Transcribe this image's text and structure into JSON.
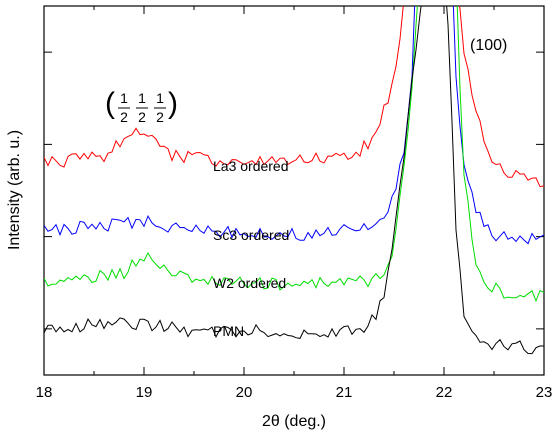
{
  "chart_data": {
    "type": "line",
    "xlabel": "2θ (deg.)",
    "ylabel": "Intensity (arb. u.)",
    "xlim": [
      18,
      23
    ],
    "x_ticks": [
      "18",
      "19",
      "20",
      "21",
      "22",
      "23"
    ],
    "y_ticks_labeled": false,
    "grid": false,
    "legend": "none",
    "annotations": {
      "peak_100": "(100)",
      "superlattice_open": "(",
      "superlattice_close": ")",
      "superlattice_numerators": [
        "1",
        "1",
        "1"
      ],
      "superlattice_denominators": [
        "2",
        "2",
        "2"
      ]
    },
    "series": [
      {
        "name": "La3 ordered",
        "color": "#ff0000",
        "x": [
          18.0,
          18.2,
          18.4,
          18.6,
          18.8,
          18.9,
          19.0,
          19.1,
          19.3,
          19.6,
          20.0,
          20.4,
          20.8,
          21.1,
          21.3,
          21.45,
          21.55,
          21.6,
          21.65,
          22.1,
          22.15,
          22.2,
          22.3,
          22.45,
          22.6,
          22.8,
          23.0
        ],
        "y": [
          0.575,
          0.58,
          0.585,
          0.59,
          0.64,
          0.67,
          0.66,
          0.63,
          0.595,
          0.585,
          0.575,
          0.58,
          0.585,
          0.585,
          0.65,
          0.75,
          0.88,
          1.02,
          1.1,
          1.1,
          1.02,
          0.88,
          0.72,
          0.6,
          0.55,
          0.535,
          0.525
        ]
      },
      {
        "name": "Sc3 ordered",
        "color": "#0000ff",
        "x": [
          18.0,
          18.4,
          18.8,
          19.0,
          19.2,
          19.6,
          20.0,
          20.4,
          20.8,
          21.2,
          21.4,
          21.5,
          21.6,
          21.68,
          21.72,
          22.08,
          22.12,
          22.18,
          22.3,
          22.5,
          22.7,
          23.0
        ],
        "y": [
          0.39,
          0.4,
          0.41,
          0.42,
          0.4,
          0.395,
          0.385,
          0.38,
          0.385,
          0.395,
          0.43,
          0.49,
          0.6,
          0.8,
          1.1,
          1.1,
          0.8,
          0.6,
          0.46,
          0.38,
          0.37,
          0.365
        ]
      },
      {
        "name": "W2 ordered",
        "color": "#00dd00",
        "x": [
          18.0,
          18.4,
          18.8,
          18.95,
          19.1,
          19.3,
          19.6,
          20.0,
          20.4,
          20.8,
          21.2,
          21.4,
          21.5,
          21.6,
          21.7,
          21.75,
          22.12,
          22.15,
          22.2,
          22.3,
          22.45,
          22.6,
          22.8,
          23.0
        ],
        "y": [
          0.25,
          0.26,
          0.275,
          0.32,
          0.31,
          0.27,
          0.255,
          0.25,
          0.245,
          0.25,
          0.255,
          0.26,
          0.35,
          0.55,
          0.85,
          1.1,
          1.1,
          0.85,
          0.55,
          0.32,
          0.24,
          0.225,
          0.22,
          0.215
        ]
      },
      {
        "name": "PMN",
        "color": "#000000",
        "x": [
          18.0,
          18.4,
          18.8,
          19.2,
          19.6,
          20.0,
          20.4,
          20.8,
          21.0,
          21.2,
          21.3,
          21.4,
          21.5,
          21.6,
          21.7,
          21.78,
          21.82,
          22.0,
          22.04,
          22.08,
          22.12,
          22.2,
          22.3,
          22.4,
          22.6,
          22.8,
          23.0
        ],
        "y": [
          0.125,
          0.135,
          0.14,
          0.13,
          0.115,
          0.12,
          0.115,
          0.11,
          0.115,
          0.13,
          0.155,
          0.22,
          0.37,
          0.6,
          0.85,
          1.02,
          1.1,
          1.1,
          0.95,
          0.7,
          0.4,
          0.17,
          0.1,
          0.085,
          0.08,
          0.075,
          0.075
        ]
      }
    ]
  }
}
